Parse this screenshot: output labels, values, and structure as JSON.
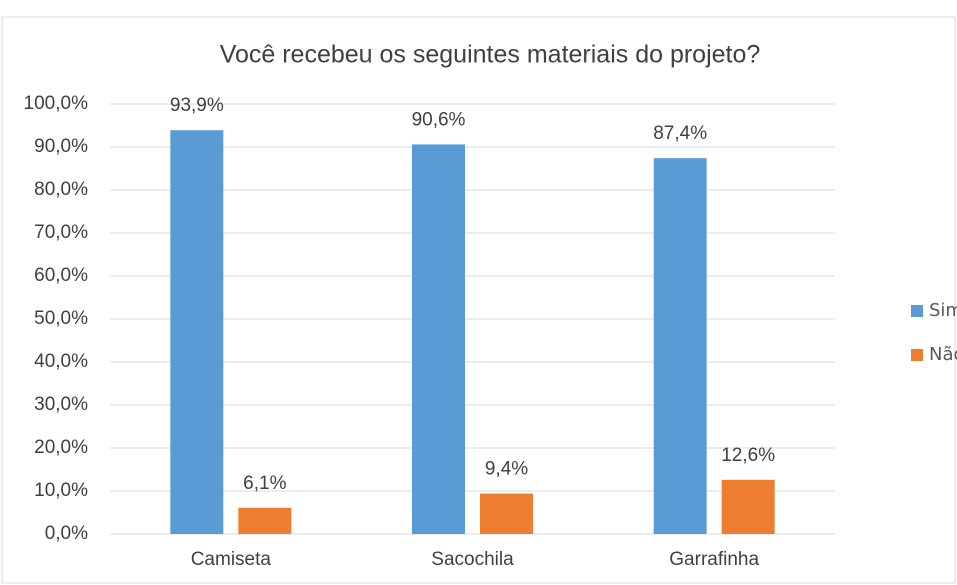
{
  "chart_data": {
    "type": "bar",
    "title": "Você recebeu os seguintes materiais do projeto?",
    "categories": [
      "Camiseta",
      "Sacochila",
      "Garrafinha"
    ],
    "series": [
      {
        "name": "Sim",
        "color": "#5b9bd5",
        "values": [
          93.9,
          90.6,
          87.4
        ],
        "value_labels": [
          "93,9%",
          "90,6%",
          "87,4%"
        ]
      },
      {
        "name": "Não",
        "color": "#ed7d31",
        "values": [
          6.1,
          9.4,
          12.6
        ],
        "value_labels": [
          "6,1%",
          "9,4%",
          "12,6%"
        ]
      }
    ],
    "ylim": [
      0,
      100
    ],
    "yticks": [
      {
        "value": 0,
        "label": "0,0%"
      },
      {
        "value": 10,
        "label": "10,0%"
      },
      {
        "value": 20,
        "label": "20,0%"
      },
      {
        "value": 30,
        "label": "30,0%"
      },
      {
        "value": 40,
        "label": "40,0%"
      },
      {
        "value": 50,
        "label": "50,0%"
      },
      {
        "value": 60,
        "label": "60,0%"
      },
      {
        "value": 70,
        "label": "70,0%"
      },
      {
        "value": 80,
        "label": "80,0%"
      },
      {
        "value": 90,
        "label": "90,0%"
      },
      {
        "value": 100,
        "label": "100,0%"
      }
    ],
    "grid": true,
    "legend": "right"
  }
}
